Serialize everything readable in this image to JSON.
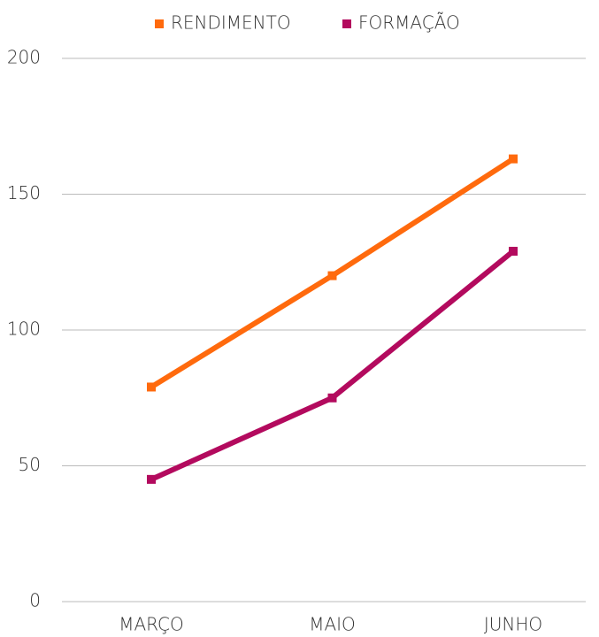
{
  "chart_data": {
    "type": "line",
    "categories": [
      "MARÇO",
      "MAIO",
      "JUNHO"
    ],
    "series": [
      {
        "name": "RENDIMENTO",
        "color": "#ff6a0d",
        "values": [
          79,
          120,
          163
        ]
      },
      {
        "name": "FORMAÇÃO",
        "color": "#b30a5e",
        "values": [
          45,
          75,
          129
        ]
      }
    ],
    "ylim": [
      0,
      200
    ],
    "yticks": [
      0,
      50,
      100,
      150,
      200
    ],
    "grid": true,
    "legend": "top"
  }
}
